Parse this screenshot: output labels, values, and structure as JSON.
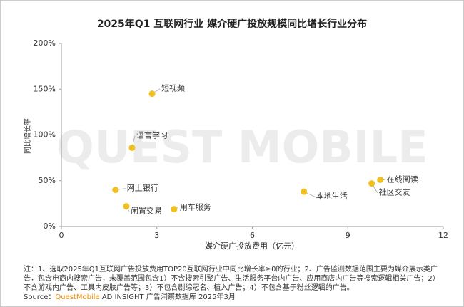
{
  "chart_data": {
    "type": "scatter",
    "title": "2025年Q1 互联网行业 媒介硬广投放规模同比增长行业分布",
    "x_label": "媒介硬广投放费用（亿元）",
    "y_label": "同比增长率",
    "watermark": "QUEST MOBILE",
    "labels": [
      "短视频",
      "语言学习",
      "网上银行",
      "闲置交易",
      "用车服务",
      "本地生活",
      "社区交友",
      "在线阅读"
    ],
    "x": [
      2.85,
      2.22,
      1.7,
      2.04,
      3.54,
      7.62,
      9.75,
      10.02
    ],
    "values": [
      145,
      86,
      40,
      22,
      19,
      38,
      47,
      51
    ],
    "color": "#f0c020",
    "xlim": [
      0,
      12
    ],
    "xticks": [
      0,
      3,
      6,
      9,
      12
    ],
    "ylim": [
      0,
      200
    ],
    "yticks": [
      {
        "value": 0,
        "label": "0%"
      },
      {
        "value": 50,
        "label": "50%"
      },
      {
        "value": 100,
        "label": "100%"
      },
      {
        "value": 150,
        "label": "150%"
      },
      {
        "value": 200,
        "label": "200%"
      }
    ],
    "note": "注：1、选取2025年Q1互联网广告投放费用TOP20互联网行业中同比增长率≥0的行业；2、广告监测数据范围主要为媒介展示类广告，包含电商内搜索广告，未覆盖范围包含1）不含搜索引擎广告、生活服务平台内广告、应用商店内广告等搜索逻辑相关广告；2）不含游戏内广告、工具内皮肤广告等；3）不包含剧综冠名、植入广告；4）不包含基于粉丝逻辑的广告。",
    "source_prefix": "Source：",
    "source_brand": "QuestMobile",
    "source_rest": "AD INSIGHT 广告洞察数据库 2025年3月"
  }
}
